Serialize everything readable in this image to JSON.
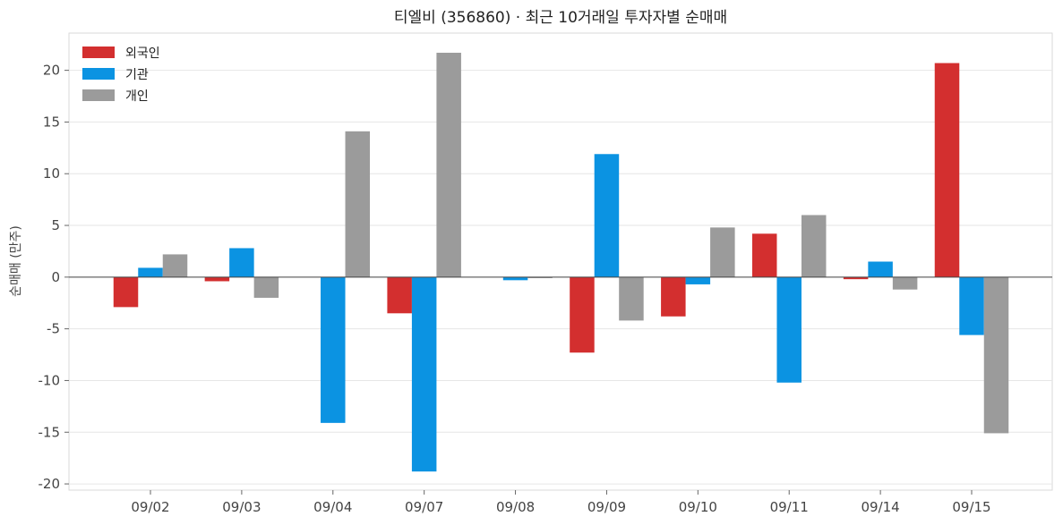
{
  "chart_data": {
    "type": "bar",
    "title": "티엘비 (356860) · 최근 10거래일 투자자별 순매매",
    "xlabel": "",
    "ylabel": "순매매 (만주)",
    "categories": [
      "09/02",
      "09/03",
      "09/04",
      "09/07",
      "09/08",
      "09/09",
      "09/10",
      "09/11",
      "09/14",
      "09/15"
    ],
    "ylim": [
      -20.6,
      23.6
    ],
    "yticks": [
      -20,
      -15,
      -10,
      -5,
      0,
      5,
      10,
      15,
      20
    ],
    "grid": true,
    "legend_position": "top-left",
    "series": [
      {
        "name": "외국인",
        "color": "#d32f2f",
        "values": [
          -2.9,
          -0.4,
          0,
          -3.5,
          0,
          -7.3,
          -3.8,
          4.2,
          -0.2,
          20.7
        ]
      },
      {
        "name": "기관",
        "color": "#0b93e2",
        "values": [
          0.9,
          2.8,
          -14.1,
          -18.8,
          -0.3,
          11.9,
          -0.7,
          -10.2,
          1.5,
          -5.6
        ]
      },
      {
        "name": "개인",
        "color": "#9b9b9b",
        "values": [
          2.2,
          -2.0,
          14.1,
          21.7,
          -0.1,
          -4.2,
          4.8,
          6.0,
          -1.2,
          -15.1
        ]
      }
    ]
  }
}
